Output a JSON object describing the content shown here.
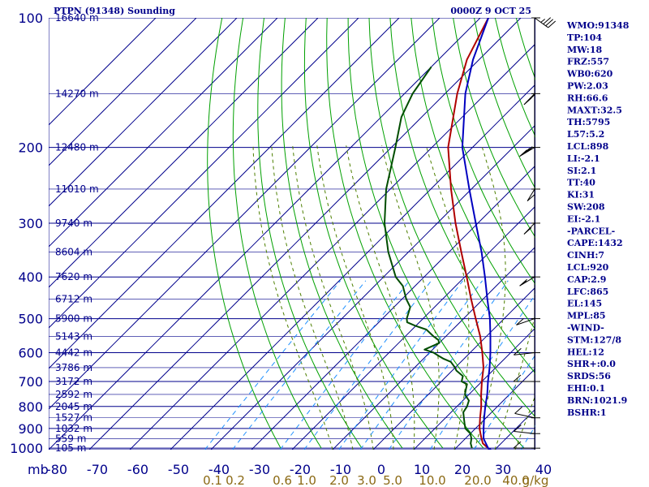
{
  "header": {
    "station": "PTPN (91348) Sounding",
    "time": "0000Z  9 OCT 25"
  },
  "axis_units": {
    "pressure": "mb"
  },
  "chart_data": {
    "type": "skew-t",
    "title": "PTPN (91348) Sounding",
    "valid": "0000Z  9 OCT 25",
    "pressure_ticks": [
      100,
      200,
      300,
      400,
      500,
      600,
      700,
      800,
      900,
      1000
    ],
    "height_labels": [
      {
        "p": 100,
        "label": "16640 m"
      },
      {
        "p": 150,
        "label": "14270 m"
      },
      {
        "p": 200,
        "label": "12480 m"
      },
      {
        "p": 250,
        "label": "11010 m"
      },
      {
        "p": 300,
        "label": "9740 m"
      },
      {
        "p": 350,
        "label": "8604 m"
      },
      {
        "p": 400,
        "label": "7620 m"
      },
      {
        "p": 450,
        "label": "6712 m"
      },
      {
        "p": 500,
        "label": "5900 m"
      },
      {
        "p": 550,
        "label": "5143 m"
      },
      {
        "p": 600,
        "label": "4442 m"
      },
      {
        "p": 650,
        "label": "3786 m"
      },
      {
        "p": 700,
        "label": "3172 m"
      },
      {
        "p": 750,
        "label": "2592 m"
      },
      {
        "p": 800,
        "label": "2045 m"
      },
      {
        "p": 850,
        "label": "1527 m"
      },
      {
        "p": 900,
        "label": "1032 m"
      },
      {
        "p": 950,
        "label": "559 m"
      },
      {
        "p": 1000,
        "label": "105 m"
      }
    ],
    "temperature_ticks": [
      -80,
      -70,
      -60,
      -50,
      -40,
      -30,
      -20,
      -10,
      0,
      10,
      20,
      30,
      40
    ],
    "temperature_tick_labels": [
      "-80",
      "-70",
      "-60",
      "-50",
      "-40",
      "-30",
      "-20",
      "-10",
      "0",
      "10",
      "20",
      "30",
      "40"
    ],
    "mixing_ratio_labels": [
      "0.1",
      "0.2",
      "0.6",
      "1.0",
      "2.0",
      "3.0",
      "5.0",
      "10.0",
      "20.0",
      "40.0",
      "g/kg"
    ],
    "xlim": [
      -80,
      40
    ],
    "ylim": [
      1000,
      100
    ],
    "series": [
      {
        "name": "temperature",
        "color": "#b00000",
        "points": [
          [
            1008,
            29
          ],
          [
            1000,
            28
          ],
          [
            975,
            25.5
          ],
          [
            950,
            24
          ],
          [
            925,
            22.5
          ],
          [
            900,
            21
          ],
          [
            850,
            18.5
          ],
          [
            800,
            16
          ],
          [
            750,
            13
          ],
          [
            700,
            10
          ],
          [
            650,
            7
          ],
          [
            600,
            3
          ],
          [
            550,
            -1.5
          ],
          [
            500,
            -7
          ],
          [
            450,
            -13
          ],
          [
            400,
            -19.5
          ],
          [
            350,
            -27
          ],
          [
            300,
            -35.5
          ],
          [
            250,
            -45
          ],
          [
            200,
            -56
          ],
          [
            150,
            -67
          ],
          [
            125,
            -73
          ],
          [
            100,
            -78
          ]
        ]
      },
      {
        "name": "parcel",
        "color": "#0000c0",
        "points": [
          [
            1008,
            29
          ],
          [
            1000,
            28
          ],
          [
            950,
            24.5
          ],
          [
            900,
            22
          ],
          [
            850,
            19.5
          ],
          [
            800,
            17
          ],
          [
            750,
            14.5
          ],
          [
            700,
            11.5
          ],
          [
            650,
            8.5
          ],
          [
            600,
            5
          ],
          [
            550,
            1
          ],
          [
            500,
            -3.5
          ],
          [
            450,
            -9
          ],
          [
            400,
            -15
          ],
          [
            350,
            -22
          ],
          [
            300,
            -30.5
          ],
          [
            250,
            -40.5
          ],
          [
            200,
            -52.5
          ],
          [
            150,
            -65
          ],
          [
            125,
            -71.5
          ],
          [
            100,
            -78
          ]
        ]
      },
      {
        "name": "dewpoint",
        "color": "#004d00",
        "points": [
          [
            1000,
            24
          ],
          [
            975,
            22.5
          ],
          [
            950,
            21.5
          ],
          [
            925,
            20
          ],
          [
            900,
            17.5
          ],
          [
            875,
            16
          ],
          [
            850,
            14.5
          ],
          [
            825,
            13
          ],
          [
            800,
            12.5
          ],
          [
            775,
            11.5
          ],
          [
            750,
            9
          ],
          [
            730,
            8
          ],
          [
            710,
            7
          ],
          [
            700,
            5
          ],
          [
            680,
            4
          ],
          [
            660,
            1
          ],
          [
            650,
            0
          ],
          [
            630,
            -2.5
          ],
          [
            620,
            -5
          ],
          [
            610,
            -7
          ],
          [
            600,
            -9
          ],
          [
            590,
            -12
          ],
          [
            570,
            -10
          ],
          [
            560,
            -11
          ],
          [
            550,
            -13
          ],
          [
            530,
            -16.5
          ],
          [
            520,
            -20
          ],
          [
            510,
            -23
          ],
          [
            500,
            -24
          ],
          [
            470,
            -26
          ],
          [
            450,
            -29
          ],
          [
            420,
            -33
          ],
          [
            400,
            -37
          ],
          [
            350,
            -45
          ],
          [
            300,
            -53
          ],
          [
            250,
            -61
          ],
          [
            200,
            -69
          ],
          [
            170,
            -75
          ],
          [
            150,
            -78
          ],
          [
            130,
            -80
          ]
        ]
      }
    ],
    "wind_barbs": [
      {
        "p": 1000,
        "dir": 90,
        "kt": 10
      },
      {
        "p": 925,
        "dir": 100,
        "kt": 10
      },
      {
        "p": 850,
        "dir": 110,
        "kt": 10
      },
      {
        "p": 700,
        "dir": 90,
        "kt": 10
      },
      {
        "p": 600,
        "dir": 80,
        "kt": 10
      },
      {
        "p": 500,
        "dir": 60,
        "kt": 10
      },
      {
        "p": 400,
        "dir": 45,
        "kt": 5
      },
      {
        "p": 300,
        "dir": 30,
        "kt": 10
      },
      {
        "p": 250,
        "dir": 20,
        "kt": 10
      },
      {
        "p": 200,
        "dir": 45,
        "kt": 25
      },
      {
        "p": 150,
        "dir": 30,
        "kt": 25
      },
      {
        "p": 100,
        "dir": 320,
        "kt": 25
      }
    ]
  },
  "indices": [
    "WMO:91348",
    "TP:104",
    "MW:18",
    "FRZ:557",
    "WB0:620",
    "PW:2.03",
    "RH:66.6",
    "MAXT:32.5",
    "TH:5795",
    "L57:5.2",
    "LCL:898",
    "LI:-2.1",
    "SI:2.1",
    "TT:40",
    "KI:31",
    "SW:208",
    "EI:-2.1",
    "-PARCEL-",
    "CAPE:1432",
    "CINH:7",
    "LCL:920",
    "CAP:2.9",
    "LFC:865",
    "EL:145",
    "MPL:85",
    "-WIND-",
    "STM:127/8",
    "HEL:12",
    "SHR+:0.0",
    "SRDS:56",
    "EHI:0.1",
    "BRN:1021.9",
    "BSHR:1"
  ],
  "colors": {
    "isobar": "#00008b",
    "isotherm": "#00008b",
    "dry_adiabat": "#00a000",
    "moist_adiabat": "#4d7f00",
    "mixing_ratio": "#1e90ff",
    "temperature": "#b00000",
    "parcel": "#0000c0",
    "dewpoint": "#004d00"
  }
}
